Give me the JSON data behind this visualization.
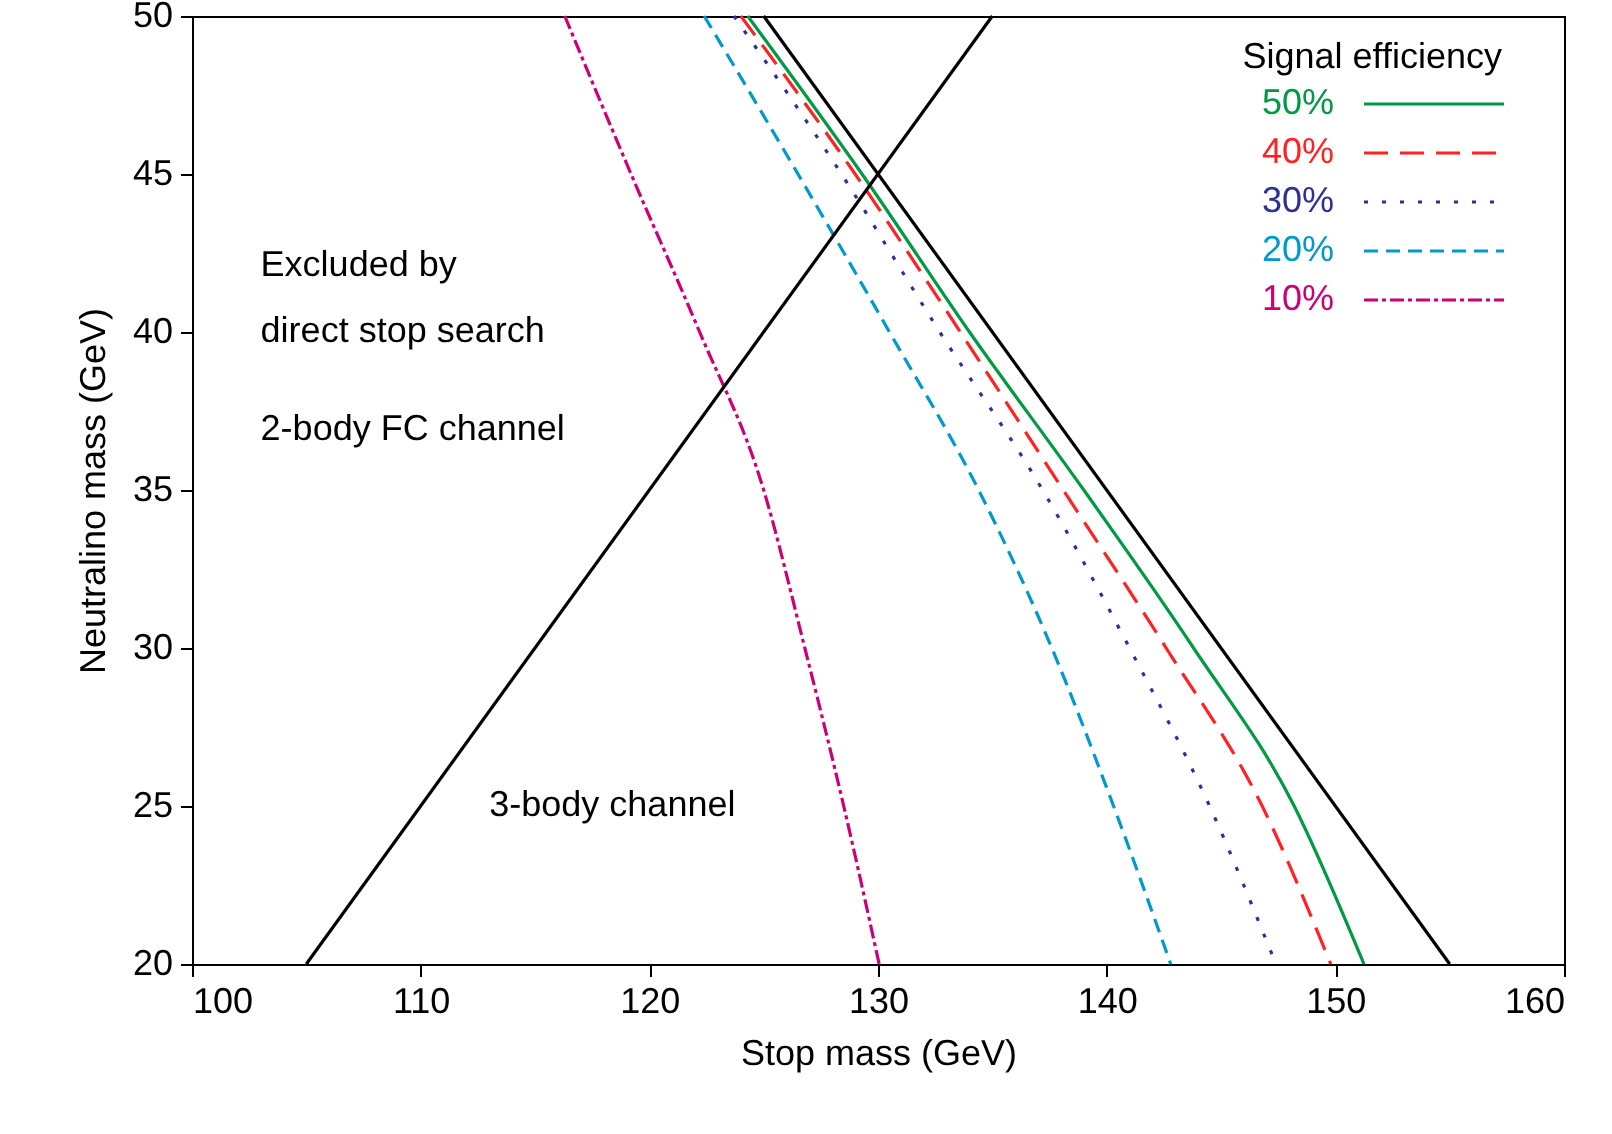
{
  "chart_data": {
    "type": "line",
    "xlabel": "Stop mass (GeV)",
    "ylabel": "Neutralino mass (GeV)",
    "legend_title": "Signal efficiency",
    "xlim": [
      100,
      160
    ],
    "xticks": [
      100,
      110,
      120,
      130,
      140,
      150,
      160
    ],
    "ylim": [
      20,
      50
    ],
    "yticks": [
      20,
      25,
      30,
      35,
      40,
      45,
      50
    ],
    "grid": false,
    "legend": "top right",
    "marker": "none",
    "annotations": [
      "Excluded by\ndirect stop search",
      "2-body FC channel",
      "3-body channel"
    ],
    "series": [
      {
        "name": "50%",
        "color": "#009944",
        "line_style": "solid",
        "x": [
          124.3,
          129.3,
          134.0,
          139.0,
          143.8,
          148.2,
          151.25
        ],
        "values": [
          50,
          45,
          40,
          35,
          30,
          25,
          20
        ]
      },
      {
        "name": "40%",
        "color": "#ff2222",
        "line_style": "dashed",
        "x": [
          124.0,
          129.0,
          133.6,
          138.1,
          142.6,
          146.8,
          149.8
        ],
        "values": [
          50,
          45,
          40,
          35,
          30,
          25,
          20
        ]
      },
      {
        "name": "30%",
        "color": "#2e3192",
        "line_style": "dotted",
        "x": [
          123.7,
          128.4,
          132.7,
          137.2,
          141.0,
          144.5,
          147.4
        ],
        "values": [
          50,
          45,
          40,
          35,
          30,
          25,
          20
        ]
      },
      {
        "name": "20%",
        "color": "#0099cc",
        "line_style": "dashed",
        "x": [
          122.4,
          126.5,
          130.5,
          134.4,
          137.6,
          140.3,
          142.8
        ],
        "values": [
          50,
          45,
          40,
          35,
          30,
          25,
          20
        ]
      },
      {
        "name": "10%",
        "color": "#cc0077",
        "line_style": "dashed",
        "x": [
          116.3,
          119.2,
          122.2,
          125.0,
          126.8,
          128.5,
          130.05
        ],
        "values": [
          50,
          45,
          40,
          35,
          30,
          25,
          20
        ]
      },
      {
        "color": "#000000",
        "line_style": "solid",
        "x": [
          105,
          135
        ],
        "values": [
          20,
          50
        ]
      },
      {
        "color": "#000000",
        "line_style": "solid",
        "x": [
          125,
          155
        ],
        "values": [
          50,
          20
        ]
      }
    ]
  }
}
